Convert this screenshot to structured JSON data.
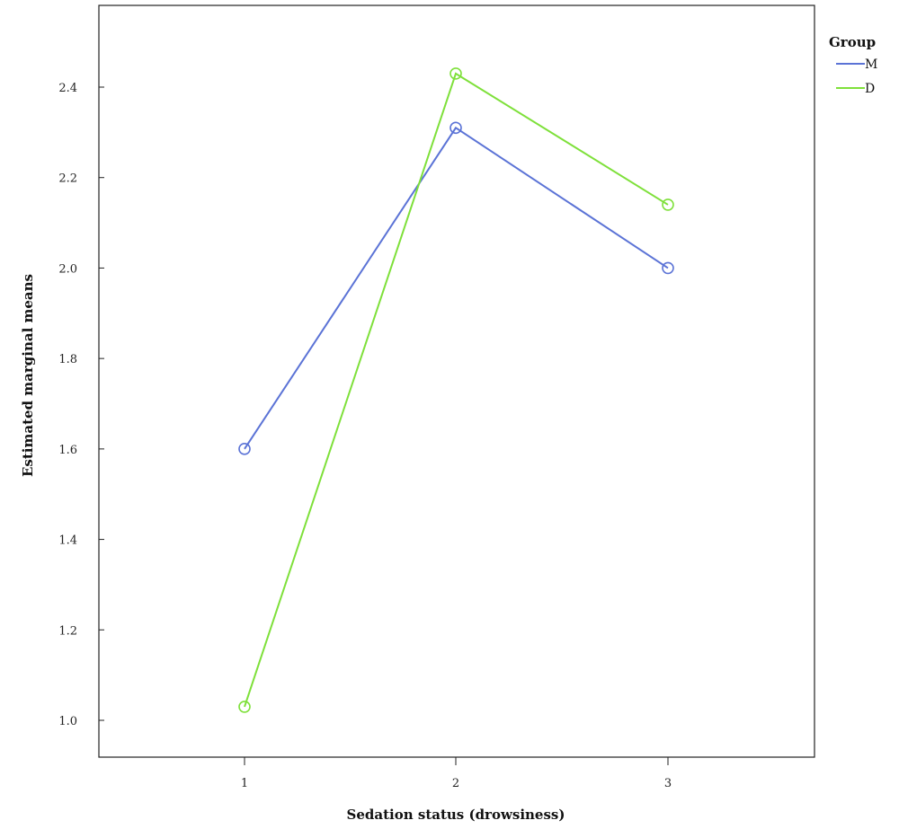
{
  "chart_data": {
    "type": "line",
    "title": "",
    "xlabel": "Sedation status (drowsiness)",
    "ylabel": "Estimated marginal means",
    "categories": [
      "1",
      "2",
      "3"
    ],
    "ylim": [
      0.94,
      2.62
    ],
    "yticks": [
      1.0,
      1.2,
      1.4,
      1.6,
      1.8,
      2.0,
      2.2,
      2.4
    ],
    "grid": false,
    "legend": {
      "title": "Group",
      "placement": "outside-top-right"
    },
    "marker": "open-circle",
    "series": [
      {
        "name": "M",
        "color": "#5b73d6",
        "values": [
          1.6,
          2.31,
          2.0
        ]
      },
      {
        "name": "D",
        "color": "#7ee03a",
        "values": [
          1.03,
          2.43,
          2.14
        ]
      }
    ]
  }
}
